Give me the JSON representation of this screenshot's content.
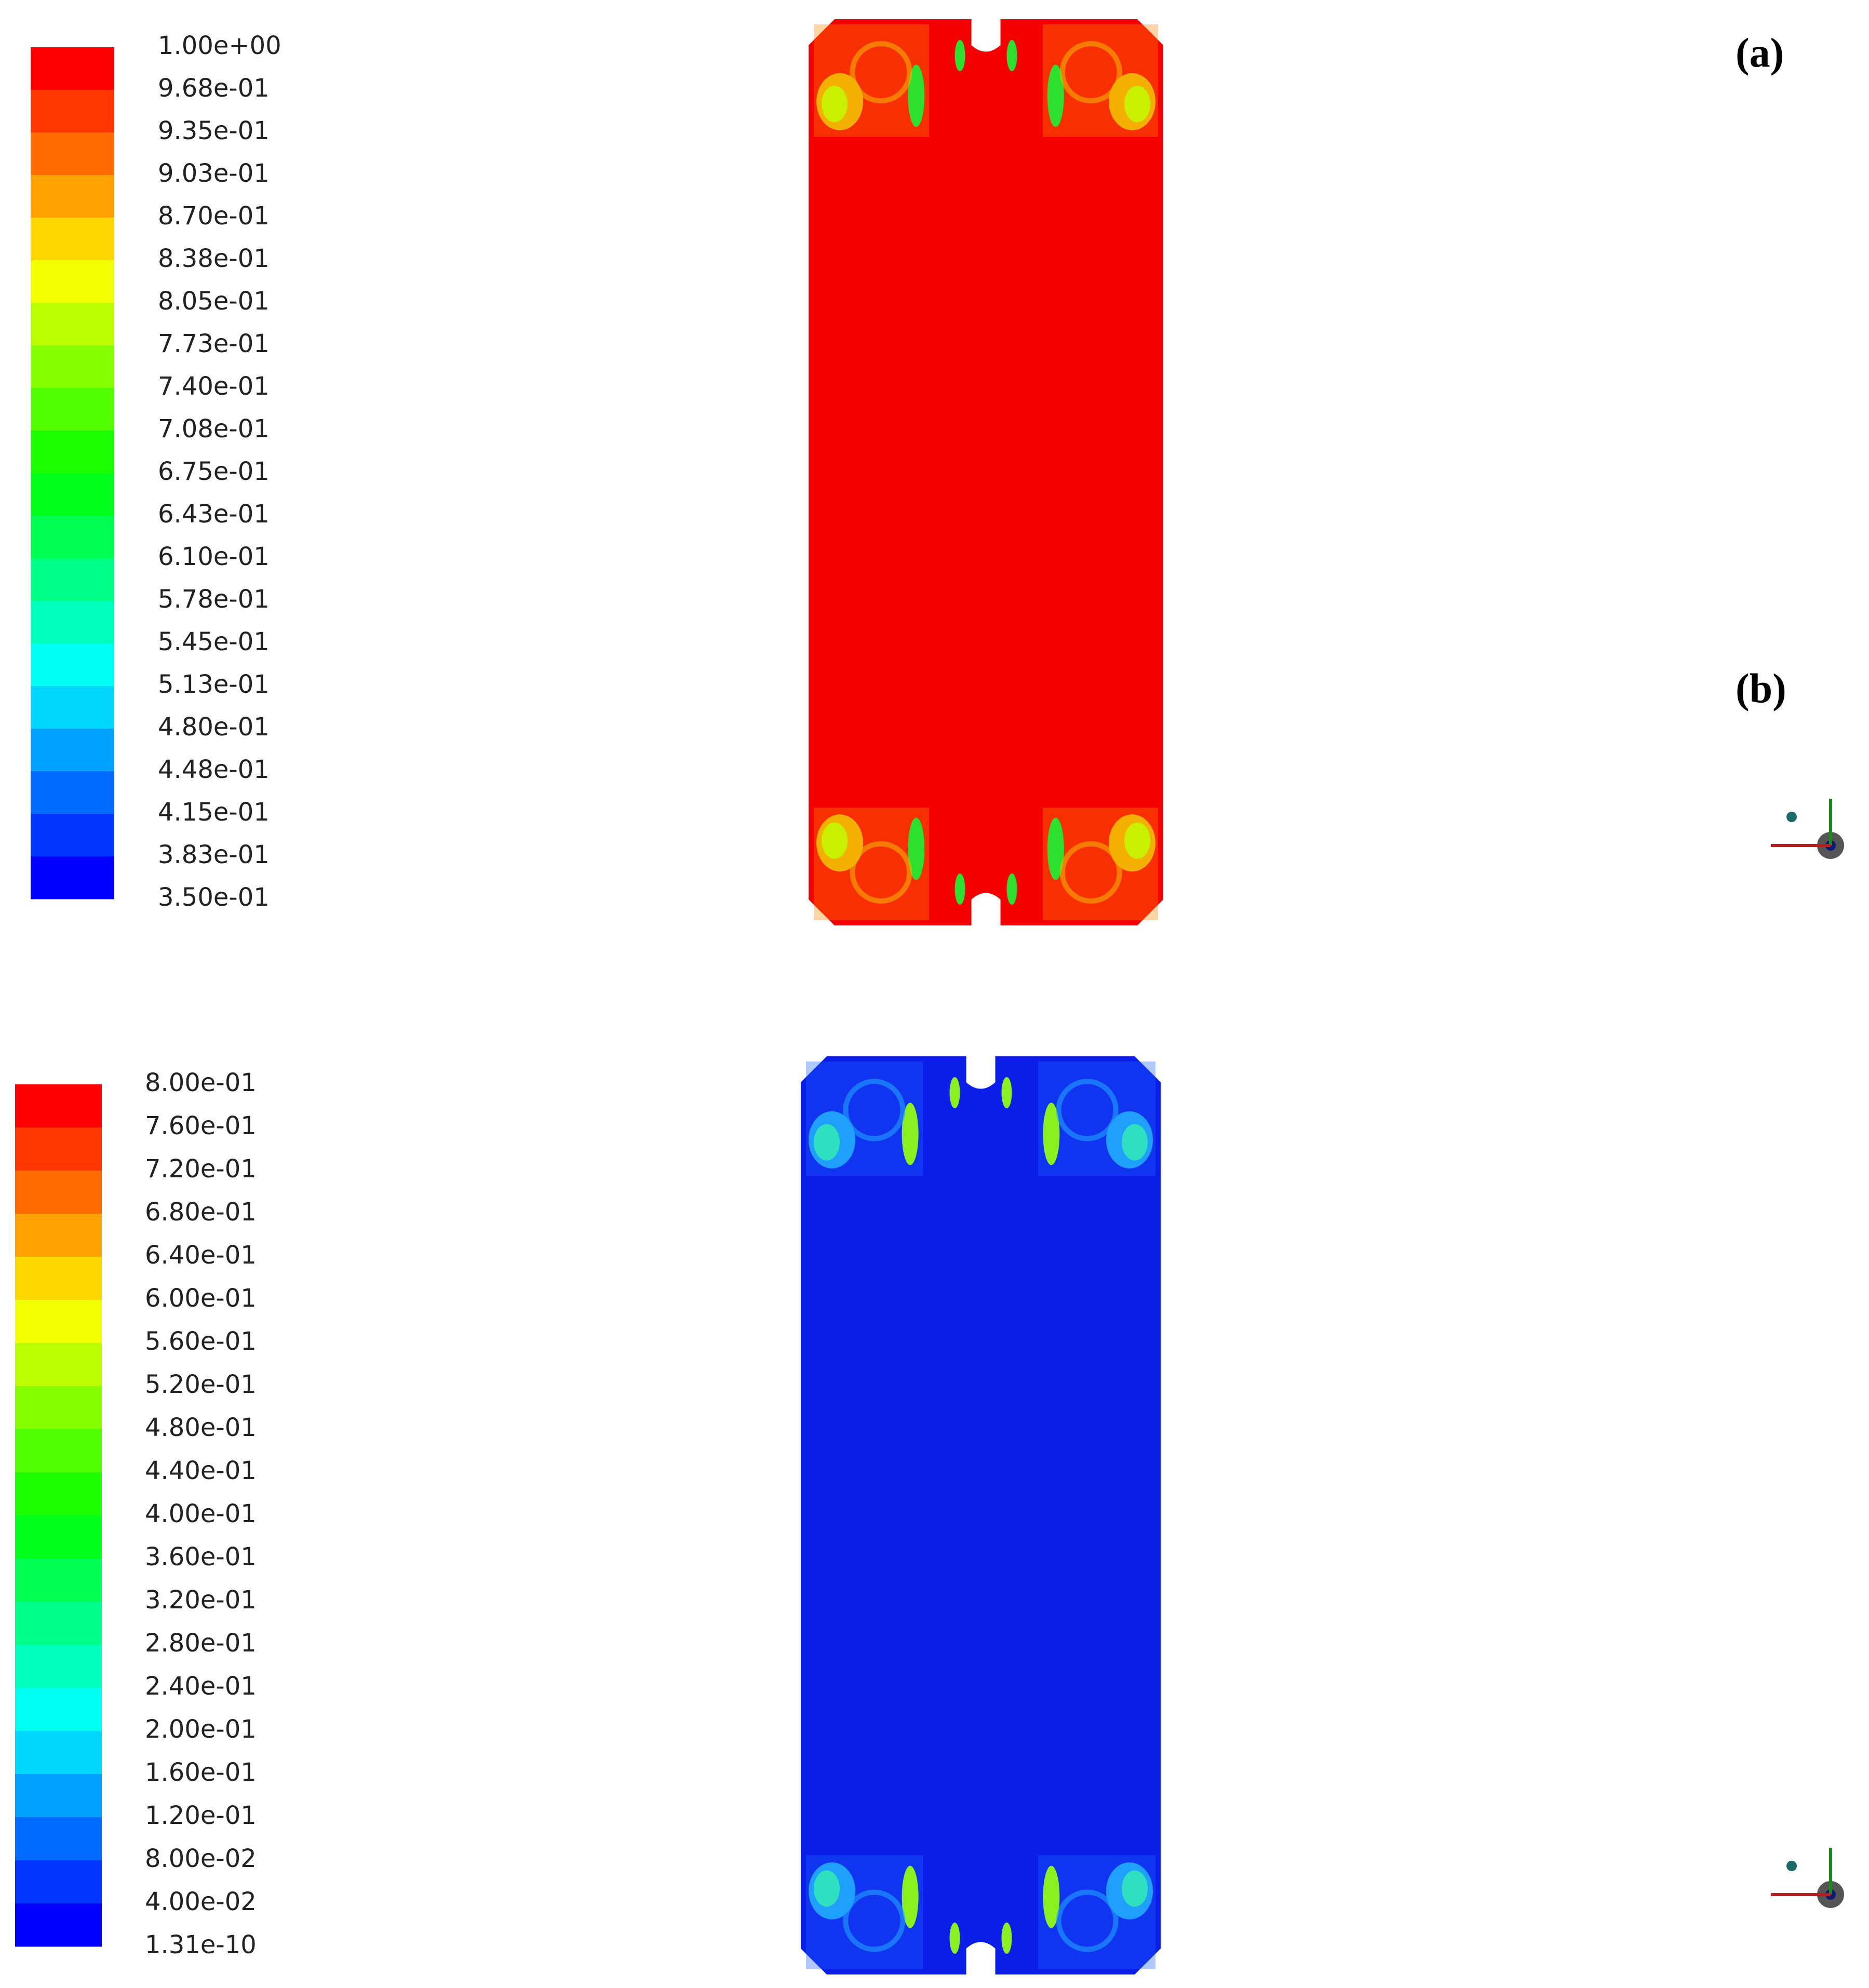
{
  "panels": [
    {
      "label": "(a)",
      "legend_labels": [
        "1.00e+00",
        "9.68e-01",
        "9.35e-01",
        "9.03e-01",
        "8.70e-01",
        "8.38e-01",
        "8.05e-01",
        "7.73e-01",
        "7.40e-01",
        "7.08e-01",
        "6.75e-01",
        "6.43e-01",
        "6.10e-01",
        "5.78e-01",
        "5.45e-01",
        "5.13e-01",
        "4.80e-01",
        "4.48e-01",
        "4.15e-01",
        "3.83e-01",
        "3.50e-01"
      ]
    },
    {
      "label": "(b)",
      "legend_labels": [
        "8.00e-01",
        "7.60e-01",
        "7.20e-01",
        "6.80e-01",
        "6.40e-01",
        "6.00e-01",
        "5.60e-01",
        "5.20e-01",
        "4.80e-01",
        "4.40e-01",
        "4.00e-01",
        "3.60e-01",
        "3.20e-01",
        "2.80e-01",
        "2.40e-01",
        "2.00e-01",
        "1.60e-01",
        "1.20e-01",
        "8.00e-02",
        "4.00e-02",
        "1.31e-10"
      ]
    }
  ]
}
